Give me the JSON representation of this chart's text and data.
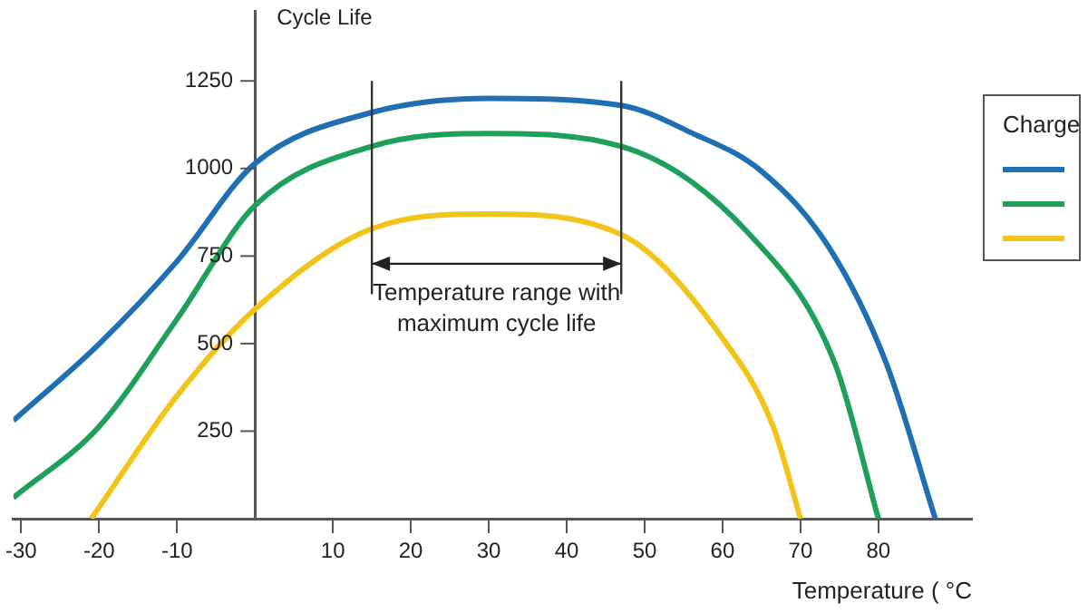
{
  "chart_data": {
    "type": "line",
    "xlabel": "Temperature ( °C",
    "ylabel": "Cycle Life",
    "legend_title": "Charge",
    "grid": false,
    "marker": "none",
    "line_style": "solid",
    "xlim": [
      -31,
      92
    ],
    "ylim": [
      0,
      1450
    ],
    "xticks": [
      -30,
      -20,
      -10,
      10,
      20,
      30,
      40,
      50,
      60,
      70,
      80
    ],
    "yticks": [
      250,
      500,
      750,
      1000,
      1250
    ],
    "series": [
      {
        "color": "#1f6fb2",
        "x": [
          -31,
          -20,
          -10,
          0,
          15,
          30,
          47,
          56,
          65,
          73.7,
          81,
          87.3
        ],
        "values": [
          280,
          499,
          735,
          1014,
          1160,
          1200,
          1180,
          1102,
          992,
          773,
          444,
          0
        ]
      },
      {
        "color": "#1fa05a",
        "x": [
          -31,
          -20,
          -10,
          0,
          15,
          30,
          47,
          63.5,
          74.4,
          80
        ],
        "values": [
          60,
          263,
          570,
          894,
          1063,
          1100,
          1063,
          811,
          444,
          0
        ]
      },
      {
        "color": "#f0c419",
        "x": [
          -21,
          -10,
          0,
          15,
          30,
          47,
          60,
          66.5,
          70
        ],
        "values": [
          0,
          351,
          598,
          828,
          870,
          811,
          515,
          263,
          0
        ]
      }
    ],
    "ref_lines": [
      {
        "axis": "x",
        "value": 15,
        "color": "#333333"
      },
      {
        "axis": "x",
        "value": 47,
        "color": "#333333"
      }
    ],
    "annotations": [
      "Temperature range with maximum cycle life"
    ]
  }
}
